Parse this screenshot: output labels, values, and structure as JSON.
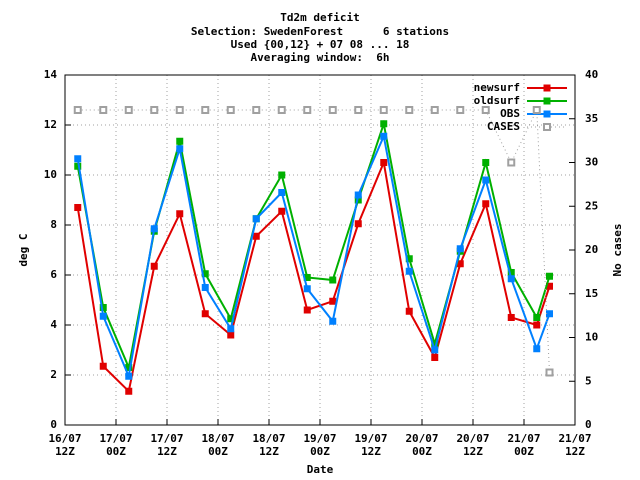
{
  "chart_data": {
    "type": "line",
    "title": [
      "Td2m deficit",
      "Selection: SwedenForest      6 stations",
      "Used {00,12} + 07 08 ... 18",
      "Averaging window:  6h"
    ],
    "x_label": "Date",
    "y_label": "deg C",
    "y2_label": "No cases",
    "x": [
      3,
      9,
      15,
      21,
      27,
      33,
      39,
      45,
      51,
      57,
      63,
      69,
      75,
      81,
      87,
      93,
      99,
      105,
      111,
      114
    ],
    "xlim": [
      0,
      120
    ],
    "xticks": [
      {
        "value": 0,
        "label": "16/07\n12Z"
      },
      {
        "value": 12,
        "label": "17/07\n00Z"
      },
      {
        "value": 24,
        "label": "17/07\n12Z"
      },
      {
        "value": 36,
        "label": "18/07\n00Z"
      },
      {
        "value": 48,
        "label": "18/07\n12Z"
      },
      {
        "value": 60,
        "label": "19/07\n00Z"
      },
      {
        "value": 72,
        "label": "19/07\n12Z"
      },
      {
        "value": 84,
        "label": "20/07\n00Z"
      },
      {
        "value": 96,
        "label": "20/07\n12Z"
      },
      {
        "value": 108,
        "label": "21/07\n00Z"
      },
      {
        "value": 120,
        "label": "21/07\n12Z"
      }
    ],
    "ylim": [
      0,
      14
    ],
    "yticks": [
      0,
      2,
      4,
      6,
      8,
      10,
      12,
      14
    ],
    "y2lim": [
      0,
      40
    ],
    "y2ticks": [
      0,
      5,
      10,
      15,
      20,
      25,
      30,
      35,
      40
    ],
    "grid": true,
    "legend": "top-right",
    "series": [
      {
        "name": "newsurf",
        "color": "#e00000",
        "values": [
          8.7,
          2.35,
          1.35,
          6.35,
          8.45,
          4.45,
          3.6,
          7.55,
          8.55,
          4.6,
          4.95,
          8.05,
          10.5,
          4.55,
          2.7,
          6.45,
          8.85,
          4.3,
          4.0,
          5.55
        ]
      },
      {
        "name": "oldsurf",
        "color": "#00b000",
        "values": [
          10.35,
          4.7,
          2.3,
          7.75,
          11.35,
          6.05,
          4.25,
          8.25,
          10.0,
          5.9,
          5.8,
          9.0,
          12.05,
          6.65,
          3.25,
          6.95,
          10.5,
          6.1,
          4.3,
          5.95
        ]
      },
      {
        "name": "OBS",
        "color": "#0080ff",
        "values": [
          10.65,
          4.35,
          1.95,
          7.85,
          11.05,
          5.5,
          3.85,
          8.25,
          9.3,
          5.45,
          4.15,
          9.2,
          11.55,
          6.15,
          3.0,
          7.05,
          9.8,
          5.85,
          3.05,
          4.45
        ]
      },
      {
        "name": "CASES",
        "color": "#a0a0a0",
        "axis": "y2",
        "dashed": true,
        "values": [
          36,
          36,
          36,
          36,
          36,
          36,
          36,
          36,
          36,
          36,
          36,
          36,
          36,
          36,
          36,
          36,
          36,
          30,
          36,
          6
        ]
      }
    ]
  }
}
